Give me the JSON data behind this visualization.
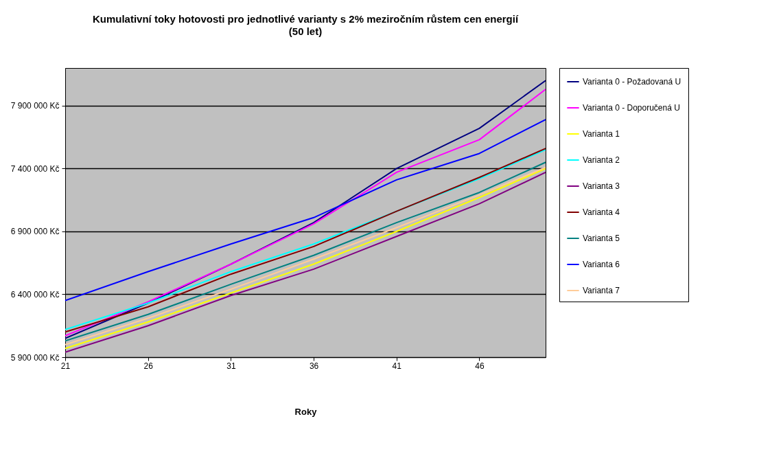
{
  "chart_data": {
    "type": "line",
    "title": "Kumulativní toky hotovosti pro jednotlivé varianty s 2% meziročním růstem cen energií",
    "subtitle": "(50 let)",
    "xlabel": "Roky",
    "x": [
      21,
      26,
      31,
      36,
      41,
      46,
      50
    ],
    "xlim": [
      21,
      50
    ],
    "xticks": [
      21,
      26,
      31,
      36,
      41,
      46
    ],
    "ylim": [
      5900000,
      8200000
    ],
    "yticks": [
      {
        "value": 5900000,
        "label": "5 900 000 Kč"
      },
      {
        "value": 6400000,
        "label": "6 400 000 Kč"
      },
      {
        "value": 6900000,
        "label": "6 900 000 Kč"
      },
      {
        "value": 7400000,
        "label": "7 400 000 Kč"
      },
      {
        "value": 7900000,
        "label": "7 900 000 Kč"
      }
    ],
    "grid": "y",
    "legend": "right",
    "series": [
      {
        "name": "Varianta 0 - Požadovaná U",
        "color": "#000080",
        "values": [
          6050000,
          6330000,
          6640000,
          6970000,
          7400000,
          7720000,
          8100000
        ]
      },
      {
        "name": "Varianta 0 - Doporučená U",
        "color": "#ff00ff",
        "values": [
          6070000,
          6340000,
          6640000,
          6960000,
          7370000,
          7630000,
          8030000
        ]
      },
      {
        "name": "Varianta 1",
        "color": "#ffff00",
        "values": [
          5970000,
          6180000,
          6410000,
          6640000,
          6900000,
          7170000,
          7400000
        ]
      },
      {
        "name": "Varianta 2",
        "color": "#00ffff",
        "values": [
          6120000,
          6330000,
          6580000,
          6800000,
          7060000,
          7320000,
          7550000
        ]
      },
      {
        "name": "Varianta 3",
        "color": "#800080",
        "values": [
          5940000,
          6150000,
          6390000,
          6600000,
          6860000,
          7120000,
          7370000
        ]
      },
      {
        "name": "Varianta 4",
        "color": "#800000",
        "values": [
          6100000,
          6300000,
          6560000,
          6780000,
          7060000,
          7330000,
          7560000
        ]
      },
      {
        "name": "Varianta 5",
        "color": "#008080",
        "values": [
          6030000,
          6240000,
          6480000,
          6710000,
          6970000,
          7210000,
          7450000
        ]
      },
      {
        "name": "Varianta 6",
        "color": "#0000ff",
        "values": [
          6350000,
          6580000,
          6800000,
          7010000,
          7310000,
          7520000,
          7790000
        ]
      },
      {
        "name": "Varianta 7",
        "color": "#ffcc99",
        "values": [
          6000000,
          6210000,
          6440000,
          6680000,
          6930000,
          7190000,
          7410000
        ]
      }
    ]
  }
}
